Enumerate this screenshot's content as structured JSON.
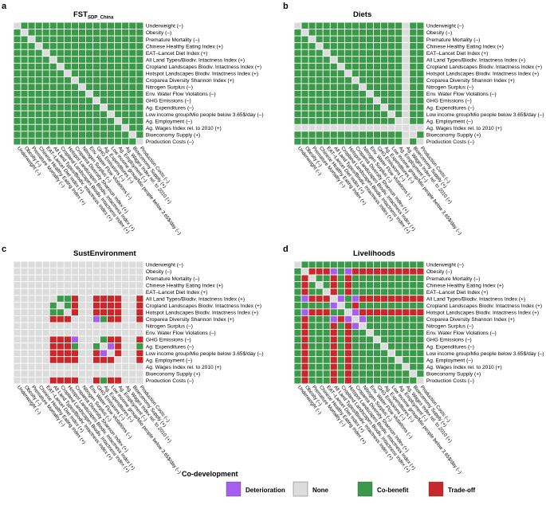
{
  "legend": {
    "title": "Co-development",
    "items": [
      {
        "key": "D",
        "label": "Deterioration",
        "color": "#a55ef0"
      },
      {
        "key": "N",
        "label": "None",
        "color": "#dcdcdc"
      },
      {
        "key": "C",
        "label": "Co-benefit",
        "color": "#3a9a4a"
      },
      {
        "key": "T",
        "label": "Trade-off",
        "color": "#c8282a"
      }
    ]
  },
  "chart_data": [
    {
      "type": "heatmap",
      "panel": "a",
      "title": "FST",
      "title_subscript": "SDP_China",
      "labels": [
        "Underweight (–)",
        "Obesity (–)",
        "Premature Mortality (–)",
        "Chinese Healthy Eating Index (+)",
        "EAT–Lancet Diet Index (+)",
        "All Land Types/Biodiv. Intactness Index (+)",
        "Cropland Landscapes Biodiv. Intactness Index (+)",
        "Hotspot Landscapes Biodiv. Intactness Index (+)",
        "Croparea Diversity Shannon Index (+)",
        "Nitrogen Surplus (–)",
        "Env. Water Flow Violations (–)",
        "GHG Emissions (–)",
        "Ag. Expenditures (–)",
        "Low income group/Mio people below 3.65$/day (–)",
        "Ag. Employment (–)",
        "Ag. Wages Index rel. to 2010 (+)",
        "Bioeconomy Supply (+)",
        "Production Costs (–)"
      ],
      "matrix": [
        "NCCCCCCCCCCCCCCCCC",
        "CNCCCCCCCCCCCCCCCC",
        "CCNCCCCCCCCCCCCCCC",
        "CCCNCCCCCCCCCCCCCC",
        "CCCCNCCCCCCCCCCCCC",
        "CCCCCNCCCCCCCCCCCC",
        "CCCCCCNCCCCCCCCCCC",
        "CCCCCCCNCCCCCCCCCC",
        "CCCCCCCCNCCCCCCCCC",
        "CCCCCCCCCNCCCCCCCC",
        "CCCCCCCCCCNCCCCCCC",
        "CCCCCCCCCCCNCCCCCC",
        "CCCCCCCCCCCCNCCCCC",
        "CCCCCCCCCCCCCNCCCC",
        "CCCCCCCCCCCCCCNCCC",
        "CCCCCCCCCCCCCCCNCC",
        "CCCCCCCCCCCCCCCCNC",
        "CCCCCCCCCCCCCCCCCN"
      ]
    },
    {
      "type": "heatmap",
      "panel": "b",
      "title": "Diets",
      "title_subscript": "",
      "labels": [
        "Underweight (–)",
        "Obesity (–)",
        "Premature Mortality (–)",
        "Chinese Healthy Eating Index (+)",
        "EAT–Lancet Diet Index (+)",
        "All Land Types/Biodiv. Intactness Index (+)",
        "Cropland Landscapes Biodiv. Intactness Index (+)",
        "Hotspot Landscapes Biodiv. Intactness Index (+)",
        "Croparea Diversity Shannon Index (+)",
        "Nitrogen Surplus (–)",
        "Env. Water Flow Violations (–)",
        "GHG Emissions (–)",
        "Ag. Expenditures (–)",
        "Low income group/Mio people below 3.65$/day (–)",
        "Ag. Employment (–)",
        "Ag. Wages Index rel. to 2010 (+)",
        "Bioeconomy Supply (+)",
        "Production Costs (–)"
      ],
      "matrix": [
        "NCCCCCCCCCCCCCCNCC",
        "CNCCCCCCCCCCCCCNCC",
        "CCNCCCCCCCCCCCCNCC",
        "CCCNCCCCCCCCCCCNCC",
        "CCCCNCCCCCCCCCCNCC",
        "CCCCCNCCCCCCCCCNCC",
        "CCCCCCNCCCCCCCCNCC",
        "CCCCCCCNCCCCCCCNCC",
        "CCCCCCCCNCCCCCCNCC",
        "CCCCCCCCCNCCCCCNCC",
        "CCCCCCCCCCNCCCCNCC",
        "CCCCCCCCCCCNCCCNCC",
        "CCCCCCCCCCCCNCCNCC",
        "CCCCCCCCCCCCCNCNCC",
        "CCCCCCCCCCCCCCNNCC",
        "NNNNNNNNNNNNNNNNNN",
        "CCCCCCCCCCCCCCCNNC",
        "CCCCCCCCCCCCCCCNCN"
      ]
    },
    {
      "type": "heatmap",
      "panel": "c",
      "title": "SustEnvironment",
      "title_subscript": "",
      "labels": [
        "Underweight (–)",
        "Obesity (–)",
        "Premature Mortality (–)",
        "Chinese Healthy Eating Index (+)",
        "EAT–Lancet Diet Index (+)",
        "All Land Types/Biodiv. Intactness Index (+)",
        "Cropland Landscapes Biodiv. Intactness Index (+)",
        "Hotspot Landscapes Biodiv. Intactness Index (+)",
        "Croparea Diversity Shannon Index (+)",
        "Nitrogen Surplus (–)",
        "Env. Water Flow Violations (–)",
        "GHG Emissions (–)",
        "Ag. Expenditures (–)",
        "Low income group/Mio people below 3.65$/day (–)",
        "Ag. Employment (–)",
        "Ag. Wages Index rel. to 2010 (+)",
        "Bioeconomy Supply (+)",
        "Production Costs (–)"
      ],
      "matrix": [
        "NNNNNNNNNNNNNNNNNN",
        "NNNNNNNNNNNNNNNNNN",
        "NNNNNNNNNNNNNNNNNN",
        "NNNNNNNNNNNNNNNNNN",
        "NNNNNNNNNNNNNNNNNN",
        "NNNNNNCCTNNTTTTNNT",
        "NNNNNCNCTNNTTTTNNT",
        "NNNNNCCNTNNTTTTNNT",
        "NNNNNTTTNNNDCTTNNT",
        "NNNNNNNNNNNNNNNNNN",
        "NNNNNNNNNNNNNNNNNN",
        "NNNNNTTTDNNNCTTNNT",
        "NNNNNTTTCNNCNDTNNC",
        "NNNNNTTTTNNTDNTNNT",
        "NNNNNTTTTNNTTTNNNT",
        "NNNNNNNNNNNNNNNNNN",
        "NNNNNNNNNNNNNNNNNN",
        "NNNNNTTTTNNTCTTNNN"
      ]
    },
    {
      "type": "heatmap",
      "panel": "d",
      "title": "Livelihoods",
      "title_subscript": "",
      "labels": [
        "Underweight (–)",
        "Obesity (–)",
        "Premature Mortality (–)",
        "Chinese Healthy Eating Index (+)",
        "EAT–Lancet Diet Index (+)",
        "All Land Types/Biodiv. Intactness Index (+)",
        "Cropland Landscapes Biodiv. Intactness Index (+)",
        "Hotspot Landscapes Biodiv. Intactness Index (+)",
        "Croparea Diversity Shannon Index (+)",
        "Nitrogen Surplus (–)",
        "Env. Water Flow Violations (–)",
        "GHG Emissions (–)",
        "Ag. Expenditures (–)",
        "Low income group/Mio people below 3.65$/day (–)",
        "Ag. Employment (–)",
        "Ag. Wages Index rel. to 2010 (+)",
        "Bioeconomy Supply (+)",
        "Production Costs (–)"
      ],
      "matrix": [
        "NCCCCCCCCCCCCCCCCC",
        "CNTTTDCDTTTTTTTTTT",
        "CTNCCTCTCCCCCCCCCC",
        "CTCNCTCTCCCCCCCCCC",
        "CTCCNTCTCCCCCCCCCC",
        "CDTTTNDCDTTTTTTTTT",
        "CCCCCDNCTCCCCCCCCC",
        "CDTTTCCNDTTTTTTTTT",
        "CTCCCDTDNDCCCCCCCC",
        "CTCCCTCTDNCCCCCCCC",
        "CTCCCTCTCCNCCCCCCC",
        "CTCCCTCTCCCNCCCCCC",
        "CTCCCTCTCCCCNCCCCC",
        "CTCCCTCTCCCCCNCCCC",
        "CTCCCTCTCCCCCCNCCC",
        "CTCCCTCTCCCCCCCNCC",
        "CTCCCTCTCCCCCCCCNC",
        "CTCCCTCTCCCCCCCCCN"
      ]
    }
  ]
}
